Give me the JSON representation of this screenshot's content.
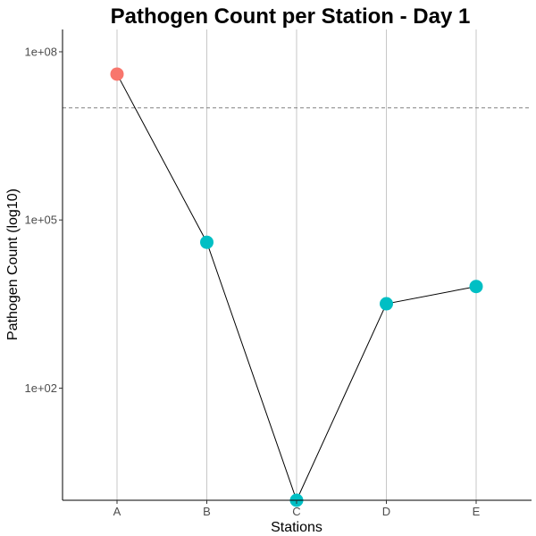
{
  "chart_data": {
    "type": "line",
    "title": "Pathogen Count per Station - Day 1",
    "xlabel": "Stations",
    "ylabel": "Pathogen Count (log10)",
    "y_scale": "log10",
    "ylim": [
      1,
      250000000
    ],
    "categories": [
      "A",
      "B",
      "C",
      "D",
      "E"
    ],
    "values": [
      40000000,
      40000,
      1,
      3200,
      6500
    ],
    "threshold": 10000000,
    "y_ticks": [
      {
        "value": 100000000,
        "label": "1e+08"
      },
      {
        "value": 100000,
        "label": "1e+05"
      },
      {
        "value": 100,
        "label": "1e+02"
      }
    ],
    "grid": "vertical-major-x",
    "point_colors": [
      "#f8766d",
      "#00bfc4",
      "#00bfc4",
      "#00bfc4",
      "#00bfc4"
    ],
    "line_color": "#000000",
    "threshold_color": "#808080"
  }
}
